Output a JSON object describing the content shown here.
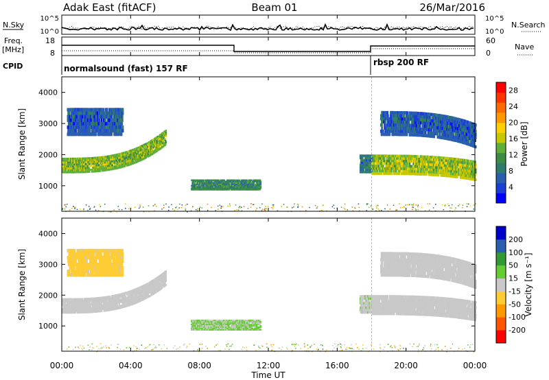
{
  "header": {
    "station": "Adak East (fitACF)",
    "beam": "Beam 01",
    "date": "26/Mar/2016"
  },
  "top_panels": {
    "nsky_label": "N.Sky",
    "nsearch_label": "N.Search",
    "nsky_ticks": [
      "10^5",
      "10^0"
    ],
    "nsearch_ticks": [
      "10^5",
      "10^0"
    ],
    "freq_label": [
      "Freq.",
      "[MHz]"
    ],
    "freq_ticks": [
      "18",
      "8"
    ],
    "nave_label": "Nave",
    "nave_ticks": [
      "60",
      "0"
    ],
    "cpid_label": "CPID",
    "cpid_segments": [
      {
        "label": "normalsound (fast) 157 RF",
        "start_hour": 0
      },
      {
        "label": "rbsp 200 RF",
        "start_hour": 18
      }
    ]
  },
  "chart_data": [
    {
      "type": "heatmap",
      "title": "",
      "ylabel": "Slant Range [km]",
      "xlabel": "",
      "xlim": [
        0,
        24
      ],
      "ylim": [
        180,
        4500
      ],
      "y_ticks": [
        "1000",
        "2000",
        "3000",
        "4000"
      ],
      "colorbar": {
        "label": "Power [dB]",
        "ticks": [
          "4",
          "8",
          "12",
          "16",
          "20",
          "24",
          "28"
        ],
        "range": [
          0,
          30
        ],
        "colors": [
          "#0000ff",
          "#1a3fd6",
          "#2a5fb0",
          "#2e7d6a",
          "#3c8c44",
          "#5fae3a",
          "#c8c800",
          "#ffd000",
          "#ff9900",
          "#ff6a00",
          "#ff3300",
          "#ff0000"
        ]
      },
      "echo_regions": [
        {
          "t_start": 0.0,
          "t_end": 6.0,
          "range_start": 1400,
          "range_end": 1900,
          "range_shift_end": 900,
          "power_db": 14
        },
        {
          "t_start": 0.3,
          "t_end": 3.5,
          "range_start": 2600,
          "range_end": 3500,
          "range_shift_end": 0,
          "power_db": 6
        },
        {
          "t_start": 7.5,
          "t_end": 11.5,
          "range_start": 850,
          "range_end": 1200,
          "range_shift_end": 0,
          "power_db": 10
        },
        {
          "t_start": 17.3,
          "t_end": 18.0,
          "range_start": 1400,
          "range_end": 2000,
          "range_shift_end": 0,
          "power_db": 8
        },
        {
          "t_start": 18.0,
          "t_end": 24.0,
          "range_start": 1350,
          "range_end": 2000,
          "range_shift_end": -200,
          "power_db": 15
        },
        {
          "t_start": 18.5,
          "t_end": 24.0,
          "range_start": 2600,
          "range_end": 3400,
          "range_shift_end": -400,
          "power_db": 6
        }
      ]
    },
    {
      "type": "heatmap",
      "title": "",
      "ylabel": "Slant Range [km]",
      "xlabel": "Time UT",
      "xlim": [
        0,
        24
      ],
      "ylim": [
        180,
        4500
      ],
      "x_ticks": [
        "00:00",
        "04:00",
        "08:00",
        "12:00",
        "16:00",
        "20:00",
        "00:00"
      ],
      "y_ticks": [
        "1000",
        "2000",
        "3000",
        "4000"
      ],
      "colorbar": {
        "label": "Velocity [m s⁻¹]",
        "ticks": [
          "200",
          "100",
          "50",
          "15",
          "-15",
          "-50",
          "-100",
          "-200"
        ],
        "range": [
          -250,
          250
        ],
        "colors": [
          "#ff0000",
          "#ff5500",
          "#ff9900",
          "#ffcc33",
          "#c8c8c8",
          "#66cc33",
          "#339933",
          "#2a5fb0",
          "#0000cc"
        ]
      },
      "echo_regions": [
        {
          "t_start": 0.0,
          "t_end": 6.0,
          "range_start": 1400,
          "range_end": 1900,
          "range_shift_end": 900,
          "velocity": 0
        },
        {
          "t_start": 0.3,
          "t_end": 3.5,
          "range_start": 2600,
          "range_end": 3500,
          "range_shift_end": 0,
          "velocity": -40
        },
        {
          "t_start": 7.5,
          "t_end": 11.5,
          "range_start": 850,
          "range_end": 1200,
          "range_shift_end": 0,
          "velocity": 30
        },
        {
          "t_start": 17.3,
          "t_end": 18.0,
          "range_start": 1400,
          "range_end": 2000,
          "range_shift_end": 0,
          "velocity": 20
        },
        {
          "t_start": 18.0,
          "t_end": 24.0,
          "range_start": 1350,
          "range_end": 2000,
          "range_shift_end": -200,
          "velocity": 0
        },
        {
          "t_start": 18.5,
          "t_end": 24.0,
          "range_start": 2600,
          "range_end": 3400,
          "range_shift_end": -400,
          "velocity": 0
        }
      ]
    }
  ]
}
